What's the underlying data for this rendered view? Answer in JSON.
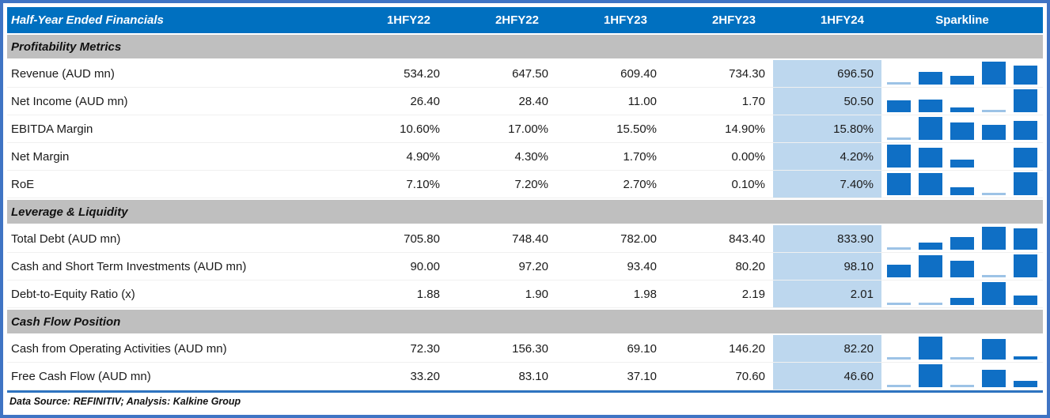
{
  "header": {
    "title": "Half-Year Ended Financials",
    "columns": [
      "1HFY22",
      "2HFY22",
      "1HFY23",
      "2HFY23",
      "1HFY24"
    ],
    "sparkline_label": "Sparkline",
    "highlight_column": "1HFY24"
  },
  "sections": [
    {
      "title": "Profitability Metrics",
      "rows": [
        {
          "label": "Revenue (AUD mn)",
          "values": [
            "534.20",
            "647.50",
            "609.40",
            "734.30",
            "696.50"
          ]
        },
        {
          "label": "Net Income (AUD mn)",
          "values": [
            "26.40",
            "28.40",
            "11.00",
            "1.70",
            "50.50"
          ]
        },
        {
          "label": "EBITDA Margin",
          "values": [
            "10.60%",
            "17.00%",
            "15.50%",
            "14.90%",
            "15.80%"
          ]
        },
        {
          "label": "Net Margin",
          "values": [
            "4.90%",
            "4.30%",
            "1.70%",
            "0.00%",
            "4.20%"
          ]
        },
        {
          "label": "RoE",
          "values": [
            "7.10%",
            "7.20%",
            "2.70%",
            "0.10%",
            "7.40%"
          ]
        }
      ]
    },
    {
      "title": "Leverage & Liquidity",
      "rows": [
        {
          "label": "Total Debt (AUD mn)",
          "values": [
            "705.80",
            "748.40",
            "782.00",
            "843.40",
            "833.90"
          ]
        },
        {
          "label": "Cash and Short Term Investments (AUD mn)",
          "values": [
            "90.00",
            "97.20",
            "93.40",
            "80.20",
            "98.10"
          ]
        },
        {
          "label": "Debt-to-Equity Ratio (x)",
          "values": [
            "1.88",
            "1.90",
            "1.98",
            "2.19",
            "2.01"
          ]
        }
      ]
    },
    {
      "title": "Cash Flow Position",
      "rows": [
        {
          "label": "Cash from Operating Activities (AUD mn)",
          "values": [
            "72.30",
            "156.30",
            "69.10",
            "146.20",
            "82.20"
          ]
        },
        {
          "label": "Free Cash Flow (AUD mn)",
          "values": [
            "33.20",
            "83.10",
            "37.10",
            "70.60",
            "46.60"
          ]
        }
      ]
    }
  ],
  "footer": {
    "text": "Data Source: REFINITIV; Analysis: Kalkine Group"
  },
  "colors": {
    "frame_border": "#3F74C4",
    "header_background": "#0070C0",
    "header_text": "#FFFFFF",
    "section_band": "#BFBFBF",
    "highlight_column": "#BDD7EE",
    "sparkline_bar": "#0F6FC5",
    "sparkline_min_sliver": "#9DC3E6",
    "footer_rule": "#2E74C0"
  },
  "chart_data": {
    "type": "table",
    "title": "Half-Year Ended Financials",
    "columns": [
      "1HFY22",
      "2HFY22",
      "1HFY23",
      "2HFY23",
      "1HFY24"
    ],
    "sections": [
      {
        "title": "Profitability Metrics",
        "rows": [
          {
            "metric": "Revenue (AUD mn)",
            "values": [
              534.2,
              647.5,
              609.4,
              734.3,
              696.5
            ]
          },
          {
            "metric": "Net Income (AUD mn)",
            "values": [
              26.4,
              28.4,
              11.0,
              1.7,
              50.5
            ]
          },
          {
            "metric": "EBITDA Margin (%)",
            "values": [
              10.6,
              17.0,
              15.5,
              14.9,
              15.8
            ]
          },
          {
            "metric": "Net Margin (%)",
            "values": [
              4.9,
              4.3,
              1.7,
              0.0,
              4.2
            ]
          },
          {
            "metric": "RoE (%)",
            "values": [
              7.1,
              7.2,
              2.7,
              0.1,
              7.4
            ]
          }
        ]
      },
      {
        "title": "Leverage & Liquidity",
        "rows": [
          {
            "metric": "Total Debt (AUD mn)",
            "values": [
              705.8,
              748.4,
              782.0,
              843.4,
              833.9
            ]
          },
          {
            "metric": "Cash and Short Term Investments (AUD mn)",
            "values": [
              90.0,
              97.2,
              93.4,
              80.2,
              98.1
            ]
          },
          {
            "metric": "Debt-to-Equity Ratio (x)",
            "values": [
              1.88,
              1.9,
              1.98,
              2.19,
              2.01
            ]
          }
        ]
      },
      {
        "title": "Cash Flow Position",
        "rows": [
          {
            "metric": "Cash from Operating Activities (AUD mn)",
            "values": [
              72.3,
              156.3,
              69.1,
              146.2,
              82.2
            ]
          },
          {
            "metric": "Free Cash Flow (AUD mn)",
            "values": [
              33.2,
              83.1,
              37.1,
              70.6,
              46.6
            ]
          }
        ]
      }
    ],
    "sparkline": {
      "type": "bar",
      "per_row": true,
      "scaling": "min-max per row; minimum value rendered as thin light-blue sliver; zero rendered empty",
      "position": "right-most column labeled Sparkline"
    }
  }
}
